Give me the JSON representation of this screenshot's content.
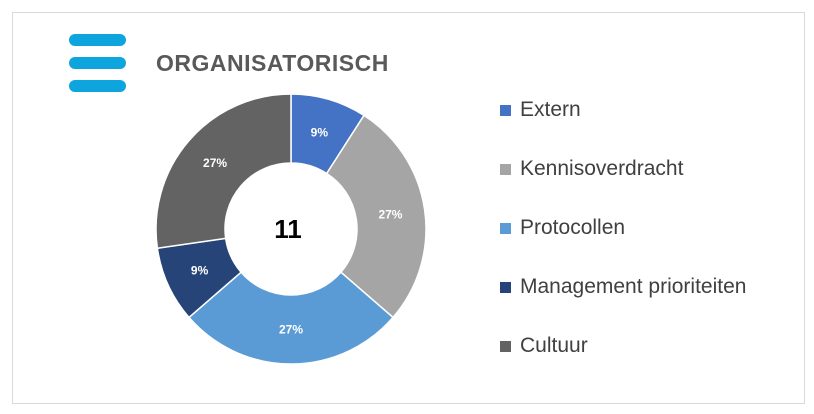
{
  "title": "ORGANISATORISCH",
  "icon": "hamburger-menu-icon",
  "center_label": "11",
  "chart_data": {
    "type": "donut",
    "title": "ORGANISATORISCH",
    "total": 11,
    "legend_position": "right",
    "series": [
      {
        "name": "Extern",
        "value": 1,
        "label": "9%",
        "color": "#4472c4"
      },
      {
        "name": "Kennisoverdracht",
        "value": 3,
        "label": "27%",
        "color": "#a5a5a5"
      },
      {
        "name": "Protocollen",
        "value": 3,
        "label": "27%",
        "color": "#5b9bd5"
      },
      {
        "name": "Management prioriteiten",
        "value": 1,
        "label": "9%",
        "color": "#264478"
      },
      {
        "name": "Cultuur",
        "value": 3,
        "label": "27%",
        "color": "#636363"
      }
    ]
  }
}
